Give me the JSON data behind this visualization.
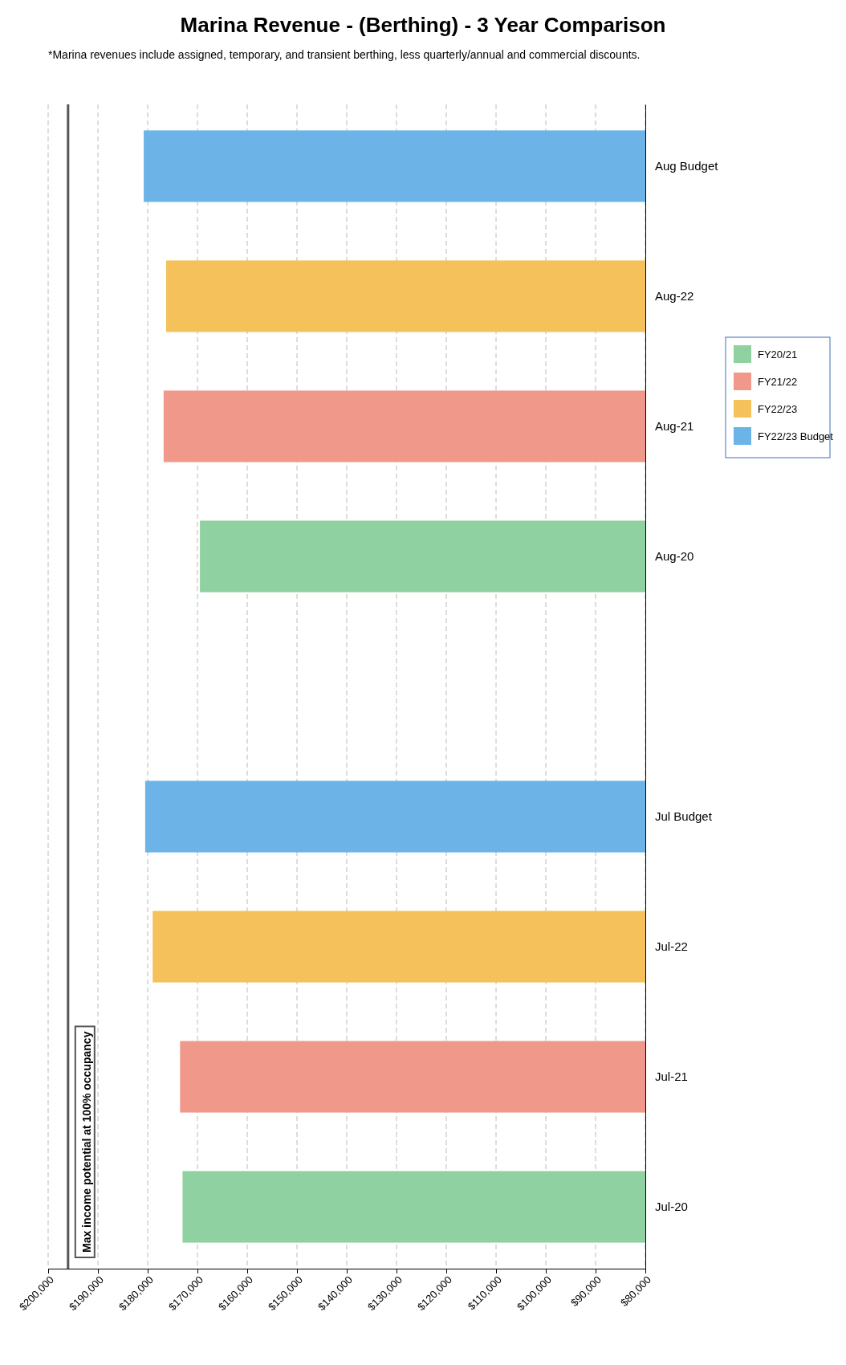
{
  "chart_data": {
    "type": "bar",
    "orientation": "horizontal",
    "title": "Marina Revenue - (Berthing) - 3 Year Comparison",
    "categories": [
      "Aug Budget",
      "Aug-22",
      "Aug-21",
      "Aug-20",
      null,
      "Jul Budget",
      "Jul-22",
      "Jul-21",
      "Jul-20"
    ],
    "series": [
      {
        "name": "FY20/21",
        "color": "#8fd1a0",
        "values": [
          null,
          null,
          null,
          169500,
          null,
          null,
          null,
          null,
          173000
        ]
      },
      {
        "name": "FY21/22",
        "color": "#f0998a",
        "values": [
          null,
          null,
          176800,
          null,
          null,
          null,
          null,
          173500,
          null
        ]
      },
      {
        "name": "FY22/23",
        "color": "#f4c15a",
        "values": [
          null,
          176300,
          null,
          null,
          null,
          null,
          179000,
          null,
          null
        ]
      },
      {
        "name": "FY22/23 Budget",
        "color": "#6cb4e8",
        "values": [
          180800,
          null,
          null,
          null,
          null,
          180500,
          null,
          null,
          null
        ]
      }
    ],
    "xlim": [
      200000,
      80000
    ],
    "xticks": [
      {
        "value": 200000,
        "label": "$200,000"
      },
      {
        "value": 190000,
        "label": "$190,000"
      },
      {
        "value": 180000,
        "label": "$180,000"
      },
      {
        "value": 170000,
        "label": "$170,000"
      },
      {
        "value": 160000,
        "label": "$160,000"
      },
      {
        "value": 150000,
        "label": "$150,000"
      },
      {
        "value": 140000,
        "label": "$140,000"
      },
      {
        "value": 130000,
        "label": "$130,000"
      },
      {
        "value": 120000,
        "label": "$120,000"
      },
      {
        "value": 110000,
        "label": "$110,000"
      },
      {
        "value": 100000,
        "label": "$100,000"
      },
      {
        "value": 90000,
        "label": "$90,000"
      },
      {
        "value": 80000,
        "label": "$80,000"
      }
    ],
    "grid": "x",
    "legend": "right",
    "ref_lines": [
      {
        "axis": "x",
        "value": 196000,
        "label": "Max income potential at 100% occupancy",
        "color": "#555555"
      }
    ],
    "annotations": [
      "*Marina revenues include assigned, temporary, and transient berthing, less quarterly/annual and commercial discounts."
    ]
  }
}
